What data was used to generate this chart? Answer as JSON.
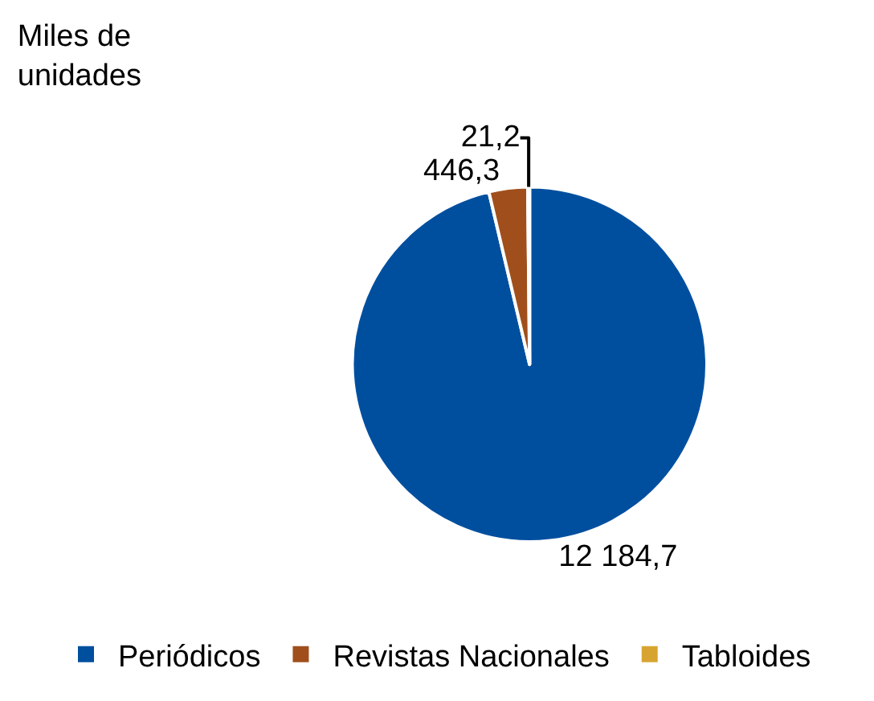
{
  "chart_data": {
    "type": "pie",
    "title": "Miles de unidades",
    "categories": [
      "Periódicos",
      "Revistas Nacionales",
      "Tabloides"
    ],
    "values": [
      12184.7,
      446.3,
      21.2
    ],
    "colors": [
      "#004f9f",
      "#a04f1c",
      "#d8a431"
    ],
    "value_labels": [
      "12 184,7",
      "446,3",
      "21,2"
    ],
    "legend": "bottom"
  }
}
